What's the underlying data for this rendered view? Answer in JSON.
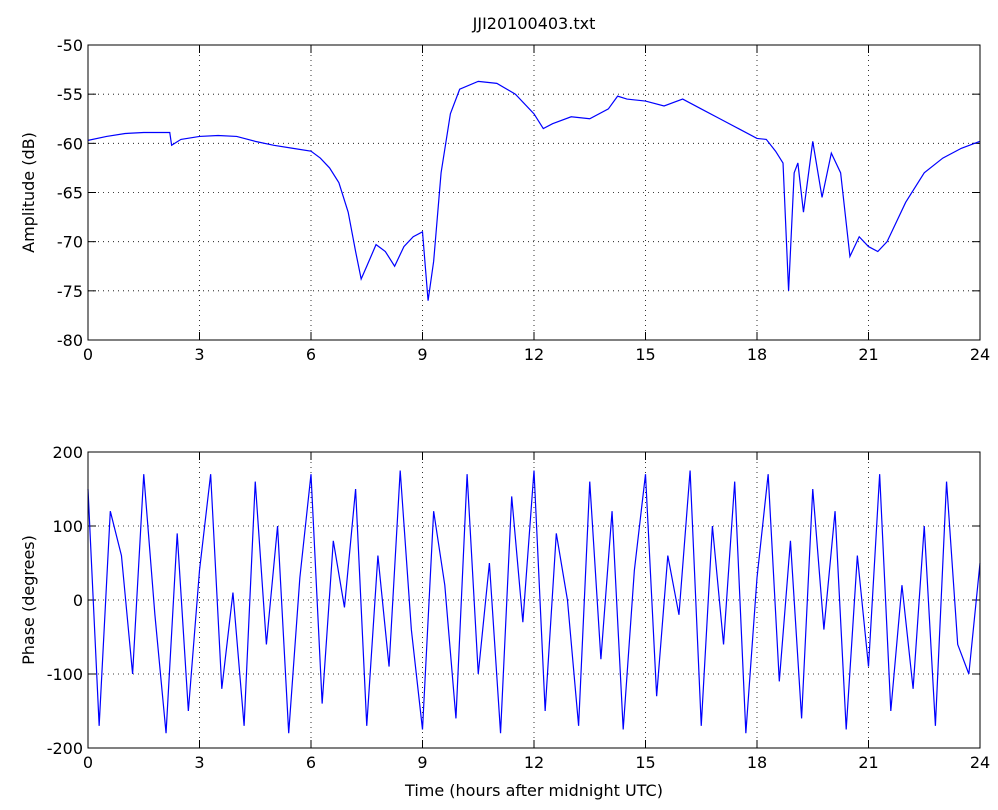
{
  "chart_data": [
    {
      "type": "line",
      "title": "JJI20100403.txt",
      "y_label": "Amplitude (dB)",
      "xlim": [
        0,
        24
      ],
      "xticks": [
        0,
        3,
        6,
        9,
        12,
        15,
        18,
        21,
        24
      ],
      "ylim": [
        -80,
        -50
      ],
      "yticks": [
        -80,
        -75,
        -70,
        -65,
        -60,
        -55,
        -50
      ],
      "grid": true,
      "series": [
        {
          "color": "#0000ff",
          "x": [
            0,
            0.5,
            1,
            1.5,
            2,
            2.2,
            2.25,
            2.5,
            3,
            3.5,
            4,
            4.5,
            5,
            5.5,
            6,
            6.25,
            6.5,
            6.75,
            7,
            7.2,
            7.35,
            7.5,
            7.75,
            8,
            8.25,
            8.5,
            8.75,
            9,
            9.15,
            9.3,
            9.5,
            9.75,
            10,
            10.5,
            11,
            11.5,
            12,
            12.25,
            12.5,
            13,
            13.5,
            14,
            14.25,
            14.5,
            15,
            15.5,
            16,
            16.5,
            17,
            17.5,
            18,
            18.25,
            18.5,
            18.7,
            18.85,
            19,
            19.1,
            19.25,
            19.5,
            19.75,
            20,
            20.25,
            20.5,
            20.75,
            21,
            21.25,
            21.5,
            22,
            22.5,
            23,
            23.5,
            24
          ],
          "values": [
            -59.7,
            -59.3,
            -59,
            -58.9,
            -58.9,
            -58.9,
            -60.2,
            -59.6,
            -59.3,
            -59.2,
            -59.3,
            -59.8,
            -60.2,
            -60.5,
            -60.8,
            -61.5,
            -62.5,
            -64,
            -67,
            -71,
            -73.8,
            -72.5,
            -70.3,
            -71,
            -72.5,
            -70.5,
            -69.5,
            -69,
            -76,
            -72,
            -63,
            -57,
            -54.5,
            -53.7,
            -53.9,
            -55,
            -57,
            -58.5,
            -58,
            -57.3,
            -57.5,
            -56.5,
            -55.2,
            -55.5,
            -55.7,
            -56.2,
            -55.5,
            -56.5,
            -57.5,
            -58.5,
            -59.5,
            -59.6,
            -60.8,
            -62,
            -75,
            -63,
            -62,
            -67,
            -59.8,
            -65.5,
            -61,
            -63,
            -71.5,
            -69.5,
            -70.5,
            -71,
            -70,
            -66,
            -63,
            -61.5,
            -60.5,
            -59.8
          ]
        }
      ]
    },
    {
      "type": "line",
      "x_label": "Time (hours after midnight UTC)",
      "y_label": "Phase (degrees)",
      "xlim": [
        0,
        24
      ],
      "xticks": [
        0,
        3,
        6,
        9,
        12,
        15,
        18,
        21,
        24
      ],
      "ylim": [
        -200,
        200
      ],
      "yticks": [
        -200,
        -100,
        0,
        100,
        200
      ],
      "grid": true,
      "series": [
        {
          "color": "#0000ff",
          "x": [
            0,
            0.3,
            0.6,
            0.9,
            1.2,
            1.5,
            1.8,
            2.1,
            2.4,
            2.7,
            3,
            3.3,
            3.6,
            3.9,
            4.2,
            4.5,
            4.8,
            5.1,
            5.4,
            5.7,
            6,
            6.3,
            6.6,
            6.9,
            7.2,
            7.5,
            7.8,
            8.1,
            8.4,
            8.7,
            9,
            9.3,
            9.6,
            9.9,
            10.2,
            10.5,
            10.8,
            11.1,
            11.4,
            11.7,
            12,
            12.3,
            12.6,
            12.9,
            13.2,
            13.5,
            13.8,
            14.1,
            14.4,
            14.7,
            15,
            15.3,
            15.6,
            15.9,
            16.2,
            16.5,
            16.8,
            17.1,
            17.4,
            17.7,
            18,
            18.3,
            18.6,
            18.9,
            19.2,
            19.5,
            19.8,
            20.1,
            20.4,
            20.7,
            21,
            21.3,
            21.6,
            21.9,
            22.2,
            22.5,
            22.8,
            23.1,
            23.4,
            23.7,
            24
          ],
          "values": [
            150,
            -170,
            120,
            60,
            -100,
            170,
            -20,
            -180,
            90,
            -150,
            40,
            170,
            -120,
            10,
            -170,
            160,
            -60,
            100,
            -180,
            30,
            170,
            -140,
            80,
            -10,
            150,
            -170,
            60,
            -90,
            175,
            -40,
            -175,
            120,
            20,
            -160,
            170,
            -100,
            50,
            -180,
            140,
            -30,
            175,
            -150,
            90,
            0,
            -170,
            160,
            -80,
            120,
            -175,
            40,
            170,
            -130,
            60,
            -20,
            175,
            -170,
            100,
            -60,
            160,
            -180,
            30,
            170,
            -110,
            80,
            -160,
            150,
            -40,
            120,
            -175,
            60,
            -90,
            170,
            -150,
            20,
            -120,
            100,
            -170,
            160,
            -60,
            -100,
            50
          ]
        }
      ]
    }
  ]
}
